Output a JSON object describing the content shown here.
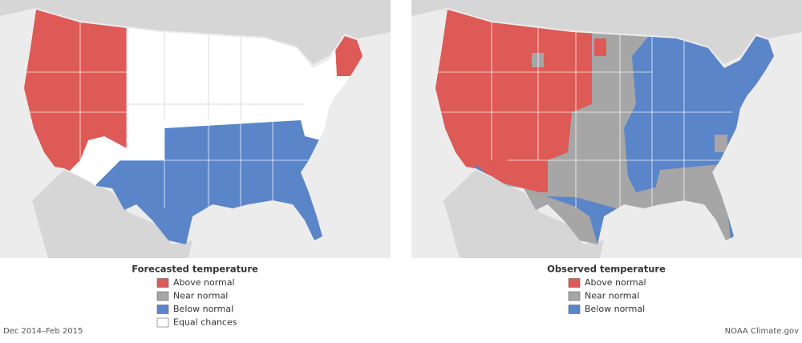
{
  "panels": [
    {
      "legend_title": "Forecasted temperature",
      "legend": [
        {
          "label": "Above normal",
          "color": "#dd5a56"
        },
        {
          "label": "Near normal",
          "color": "#a6a6a6"
        },
        {
          "label": "Below normal",
          "color": "#5b85c9"
        },
        {
          "label": "Equal chances",
          "color": "#ffffff"
        }
      ]
    },
    {
      "legend_title": "Observed temperature",
      "legend": [
        {
          "label": "Above normal",
          "color": "#dd5a56"
        },
        {
          "label": "Near normal",
          "color": "#a6a6a6"
        },
        {
          "label": "Below normal",
          "color": "#5b85c9"
        }
      ]
    }
  ],
  "footer": {
    "date": "Dec 2014–Feb 2015",
    "credit": "NOAA Climate.gov"
  }
}
